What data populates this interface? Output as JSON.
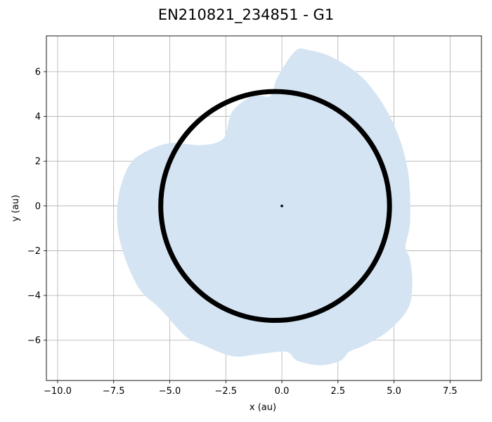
{
  "chart_data": {
    "type": "scatter",
    "title": "EN210821_234851 - G1",
    "xlabel": "x (au)",
    "ylabel": "y (au)",
    "xlim": [
      -10.5,
      8.9
    ],
    "ylim": [
      -7.8,
      7.6
    ],
    "xticks": [
      -10.0,
      -7.5,
      -5.0,
      -2.5,
      0.0,
      2.5,
      5.0,
      7.5
    ],
    "xtick_labels": [
      "−10.0",
      "−7.5",
      "−5.0",
      "−2.5",
      "0.0",
      "2.5",
      "5.0",
      "7.5"
    ],
    "yticks": [
      -6,
      -4,
      -2,
      0,
      2,
      4,
      6
    ],
    "ytick_labels": [
      "−6",
      "−4",
      "−2",
      "0",
      "2",
      "4",
      "6"
    ],
    "grid": true,
    "colors": {
      "cloud": "#d4e4f2",
      "ring": "#000000",
      "grid": "#b0b0b0"
    },
    "series": [
      {
        "kind": "cloud-outline",
        "points": [
          [
            -0.5,
            4.9
          ],
          [
            -0.2,
            5.7
          ],
          [
            0.6,
            6.9
          ],
          [
            1.2,
            6.95
          ],
          [
            2.3,
            6.6
          ],
          [
            3.7,
            5.6
          ],
          [
            4.9,
            3.8
          ],
          [
            5.6,
            1.6
          ],
          [
            5.7,
            -0.7
          ],
          [
            5.5,
            -1.8
          ],
          [
            5.7,
            -2.4
          ],
          [
            5.8,
            -3.5
          ],
          [
            5.6,
            -4.6
          ],
          [
            4.7,
            -5.6
          ],
          [
            3.7,
            -6.2
          ],
          [
            3.0,
            -6.5
          ],
          [
            2.6,
            -6.9
          ],
          [
            1.7,
            -7.1
          ],
          [
            0.7,
            -6.9
          ],
          [
            0.2,
            -6.5
          ],
          [
            -1.0,
            -6.6
          ],
          [
            -2.2,
            -6.7
          ],
          [
            -3.5,
            -6.2
          ],
          [
            -4.3,
            -5.8
          ],
          [
            -5.4,
            -4.6
          ],
          [
            -6.4,
            -3.6
          ],
          [
            -7.2,
            -1.6
          ],
          [
            -7.3,
            0.2
          ],
          [
            -6.8,
            1.8
          ],
          [
            -5.9,
            2.5
          ],
          [
            -4.9,
            2.8
          ],
          [
            -3.6,
            2.7
          ],
          [
            -2.6,
            3.0
          ],
          [
            -2.2,
            4.2
          ],
          [
            -1.3,
            4.9
          ]
        ]
      },
      {
        "kind": "ring",
        "center": [
          -0.3,
          0.0
        ],
        "radius": 5.1,
        "thickness": 0.22
      },
      {
        "kind": "central-mass",
        "x": 0.0,
        "y": 0.0
      }
    ]
  }
}
